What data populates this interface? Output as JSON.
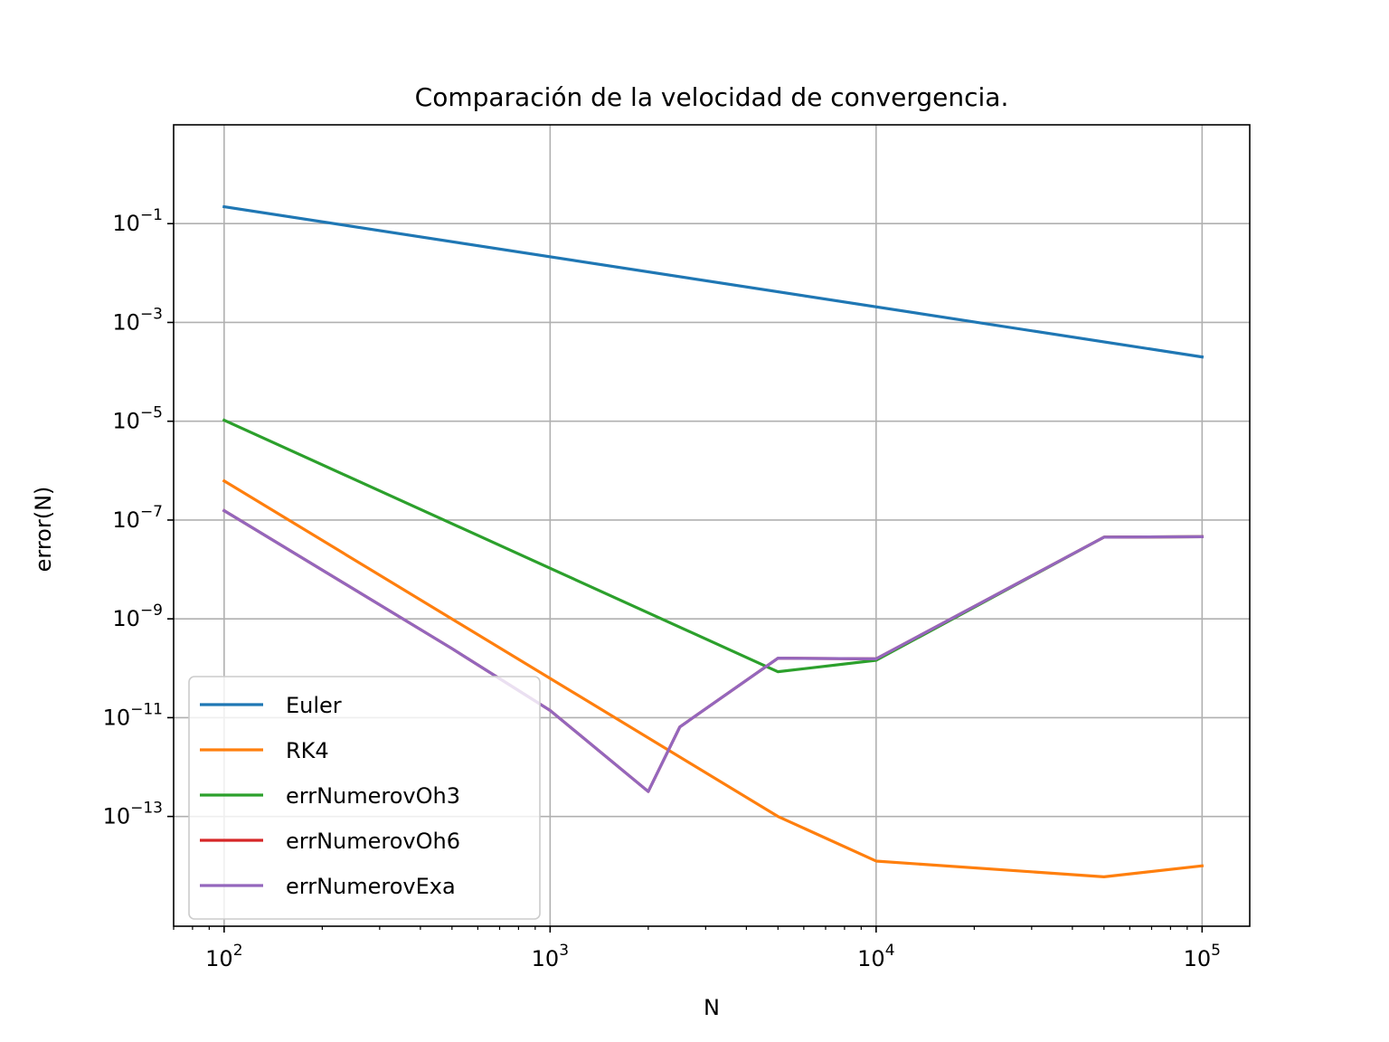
{
  "chart_data": {
    "type": "line",
    "title": "Comparación de la velocidad de convergencia.",
    "xlabel": "N",
    "ylabel": "error(N)",
    "xscale": "log",
    "yscale": "log",
    "xlim": [
      70,
      140000
    ],
    "ylim": [
      6e-16,
      10
    ],
    "grid": true,
    "legend_position": "lower-left",
    "x_ticks": [
      {
        "value": 100,
        "base": "10",
        "exp": "2"
      },
      {
        "value": 1000,
        "base": "10",
        "exp": "3"
      },
      {
        "value": 10000,
        "base": "10",
        "exp": "4"
      },
      {
        "value": 100000,
        "base": "10",
        "exp": "5"
      }
    ],
    "y_ticks": [
      {
        "value": 0.1,
        "base": "10",
        "exp": "−1"
      },
      {
        "value": 0.001,
        "base": "10",
        "exp": "−3"
      },
      {
        "value": 1e-05,
        "base": "10",
        "exp": "−5"
      },
      {
        "value": 1e-07,
        "base": "10",
        "exp": "−7"
      },
      {
        "value": 1e-09,
        "base": "10",
        "exp": "−9"
      },
      {
        "value": 1e-11,
        "base": "10",
        "exp": "−11"
      },
      {
        "value": 1e-13,
        "base": "10",
        "exp": "−13"
      }
    ],
    "series": [
      {
        "name": "Euler",
        "color": "#1f77b4",
        "x": [
          100,
          100000
        ],
        "y": [
          0.22,
          0.0002
        ]
      },
      {
        "name": "RK4",
        "color": "#ff7f0e",
        "x": [
          100,
          5000,
          10000,
          50000,
          100000
        ],
        "y": [
          6.2e-07,
          1e-13,
          1.25e-14,
          6e-15,
          1e-14
        ]
      },
      {
        "name": "errNumerovOh3",
        "color": "#2ca02c",
        "x": [
          100,
          5000,
          10000,
          50000,
          100000
        ],
        "y": [
          1.05e-05,
          8.5e-11,
          1.45e-10,
          4.5e-08,
          4.6e-08
        ]
      },
      {
        "name": "errNumerovOh6",
        "color": "#d62728",
        "x": [
          100,
          500,
          1000,
          2000,
          2500,
          5000,
          10000,
          50000,
          100000
        ],
        "y": [
          1.55e-07,
          2.5e-10,
          1.4e-11,
          3.2e-13,
          6.5e-12,
          1.6e-10,
          1.55e-10,
          4.5e-08,
          4.6e-08
        ]
      },
      {
        "name": "errNumerovExa",
        "color": "#9467bd",
        "x": [
          100,
          500,
          1000,
          2000,
          2500,
          5000,
          10000,
          50000,
          100000
        ],
        "y": [
          1.55e-07,
          2.5e-10,
          1.4e-11,
          3.2e-13,
          6.5e-12,
          1.6e-10,
          1.55e-10,
          4.5e-08,
          4.6e-08
        ]
      }
    ]
  }
}
